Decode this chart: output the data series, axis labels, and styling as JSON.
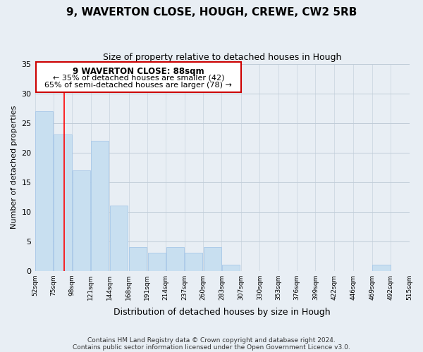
{
  "title": "9, WAVERTON CLOSE, HOUGH, CREWE, CW2 5RB",
  "subtitle": "Size of property relative to detached houses in Hough",
  "xlabel": "Distribution of detached houses by size in Hough",
  "ylabel": "Number of detached properties",
  "footer_line1": "Contains HM Land Registry data © Crown copyright and database right 2024.",
  "footer_line2": "Contains public sector information licensed under the Open Government Licence v3.0.",
  "annotation_line1": "9 WAVERTON CLOSE: 88sqm",
  "annotation_line2": "← 35% of detached houses are smaller (42)",
  "annotation_line3": "65% of semi-detached houses are larger (78) →",
  "bar_color": "#c8dff0",
  "bar_edge_color": "#a8c8e8",
  "red_line_x": 88,
  "ylim": [
    0,
    35
  ],
  "yticks": [
    0,
    5,
    10,
    15,
    20,
    25,
    30,
    35
  ],
  "bins": [
    52,
    75,
    98,
    121,
    144,
    168,
    191,
    214,
    237,
    260,
    283,
    307,
    330,
    353,
    376,
    399,
    422,
    446,
    469,
    492,
    515
  ],
  "counts": [
    27,
    23,
    17,
    22,
    11,
    4,
    3,
    4,
    3,
    4,
    1,
    0,
    0,
    0,
    0,
    0,
    0,
    0,
    1,
    0
  ],
  "bg_color": "#e8eef4",
  "plot_bg_color": "#e8eef4",
  "grid_color": "#c0ccd8"
}
